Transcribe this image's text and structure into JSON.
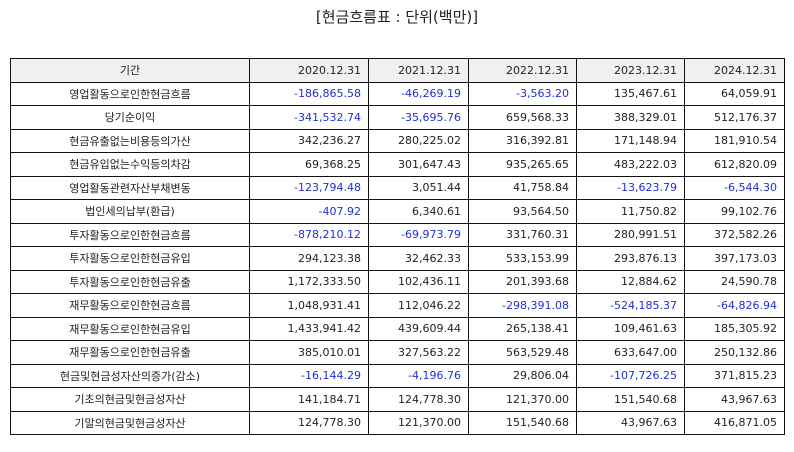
{
  "title": "[현금흐름표 : 단위(백만)]",
  "table": {
    "columns": [
      "기간",
      "2020.12.31",
      "2021.12.31",
      "2022.12.31",
      "2023.12.31",
      "2024.12.31"
    ],
    "rows": [
      {
        "label": "영업활동으로인한현금흐름",
        "values": [
          "-186,865.58",
          "-46,269.19",
          "-3,563.20",
          "135,467.61",
          "64,059.91"
        ]
      },
      {
        "label": "당기순이익",
        "values": [
          "-341,532.74",
          "-35,695.76",
          "659,568.33",
          "388,329.01",
          "512,176.37"
        ]
      },
      {
        "label": "현금유출없는비용등의가산",
        "values": [
          "342,236.27",
          "280,225.02",
          "316,392.81",
          "171,148.94",
          "181,910.54"
        ]
      },
      {
        "label": "현금유입없는수익등의차감",
        "values": [
          "69,368.25",
          "301,647.43",
          "935,265.65",
          "483,222.03",
          "612,820.09"
        ]
      },
      {
        "label": "영업활동관련자산부채변동",
        "values": [
          "-123,794.48",
          "3,051.44",
          "41,758.84",
          "-13,623.79",
          "-6,544.30"
        ]
      },
      {
        "label": "법인세의납부(환급)",
        "values": [
          "-407.92",
          "6,340.61",
          "93,564.50",
          "11,750.82",
          "99,102.76"
        ]
      },
      {
        "label": "투자활동으로인한현금흐름",
        "values": [
          "-878,210.12",
          "-69,973.79",
          "331,760.31",
          "280,991.51",
          "372,582.26"
        ]
      },
      {
        "label": "투자활동으로인한현금유입",
        "values": [
          "294,123.38",
          "32,462.33",
          "533,153.99",
          "293,876.13",
          "397,173.03"
        ]
      },
      {
        "label": "투자활동으로인한현금유출",
        "values": [
          "1,172,333.50",
          "102,436.11",
          "201,393.68",
          "12,884.62",
          "24,590.78"
        ]
      },
      {
        "label": "재무활동으로인한현금흐름",
        "values": [
          "1,048,931.41",
          "112,046.22",
          "-298,391.08",
          "-524,185.37",
          "-64,826.94"
        ]
      },
      {
        "label": "재무활동으로인한현금유입",
        "values": [
          "1,433,941.42",
          "439,609.44",
          "265,138.41",
          "109,461.63",
          "185,305.92"
        ]
      },
      {
        "label": "재무활동으로인한현금유출",
        "values": [
          "385,010.01",
          "327,563.22",
          "563,529.48",
          "633,647.00",
          "250,132.86"
        ]
      },
      {
        "label": "현금및현금성자산의증가(감소)",
        "values": [
          "-16,144.29",
          "-4,196.76",
          "29,806.04",
          "-107,726.25",
          "371,815.23"
        ]
      },
      {
        "label": "기초의현금및현금성자산",
        "values": [
          "141,184.71",
          "124,778.30",
          "121,370.00",
          "151,540.68",
          "43,967.63"
        ]
      },
      {
        "label": "기말의현금및현금성자산",
        "values": [
          "124,778.30",
          "121,370.00",
          "151,540.68",
          "43,967.63",
          "416,871.05"
        ]
      }
    ]
  },
  "colors": {
    "negative_text": "#1f2fd6",
    "header_background": "#f0f0f0",
    "border": "#111111"
  }
}
